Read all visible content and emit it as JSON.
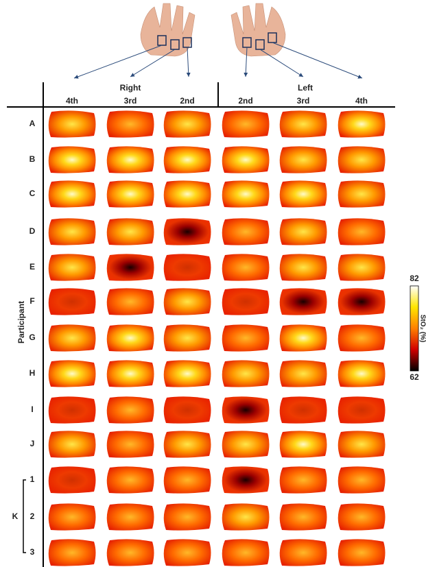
{
  "header": {
    "right": "Right",
    "left": "Left",
    "columns": [
      "4th",
      "3rd",
      "2nd",
      "2nd",
      "3rd",
      "4th"
    ]
  },
  "rows": {
    "labels": [
      "A",
      "B",
      "C",
      "D",
      "E",
      "F",
      "G",
      "H",
      "I",
      "J"
    ],
    "group": {
      "label": "K",
      "sublabels": [
        "1",
        "2",
        "3"
      ]
    }
  },
  "axis_label": "Participant",
  "colorbar": {
    "max": 82,
    "min": 62,
    "label": "StO₂ (%)"
  }
}
